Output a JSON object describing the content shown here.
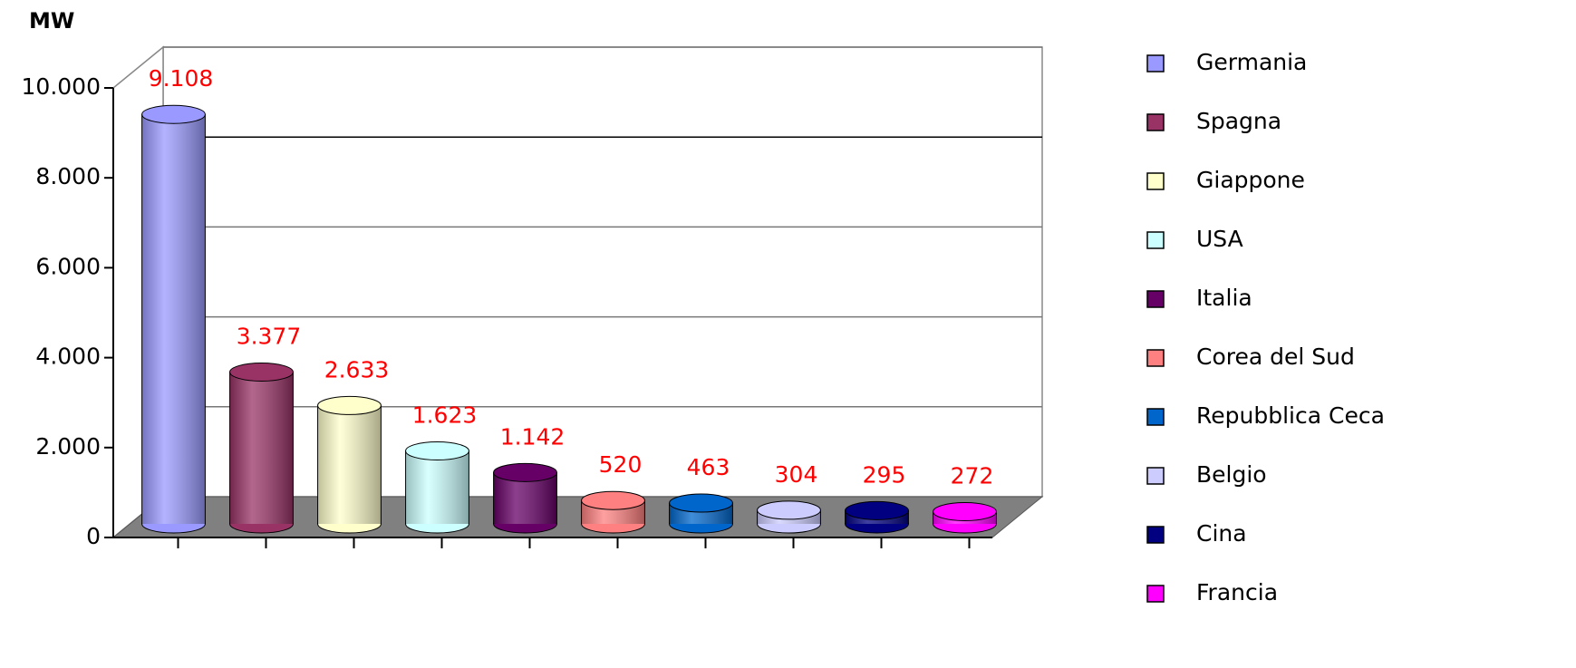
{
  "chart_data": {
    "type": "bar",
    "y_label": "MW",
    "categories": [
      "Germania",
      "Spagna",
      "Giappone",
      "USA",
      "Italia",
      "Corea del Sud",
      "Repubblica Ceca",
      "Belgio",
      "Cina",
      "Francia"
    ],
    "values": [
      9108,
      3377,
      2633,
      1623,
      1142,
      520,
      463,
      304,
      295,
      272
    ],
    "value_labels": [
      "9.108",
      "3.377",
      "2.633",
      "1.623",
      "1.142",
      "520",
      "463",
      "304",
      "295",
      "272"
    ],
    "colors": [
      "#9999ff",
      "#993366",
      "#ffffcc",
      "#ccffff",
      "#660066",
      "#ff8080",
      "#0066cc",
      "#ccccff",
      "#000080",
      "#ff00ff"
    ],
    "ylim": [
      0,
      10000
    ],
    "yticks": [
      0,
      {
        "value": 2000,
        "label": "2.000"
      },
      {
        "value": 4000,
        "label": "4.000"
      },
      {
        "value": 6000,
        "label": "6.000"
      },
      {
        "value": 8000,
        "label": "8.000"
      },
      {
        "value": 10000,
        "label": "10.000"
      }
    ],
    "grid": true,
    "legend": "right"
  }
}
